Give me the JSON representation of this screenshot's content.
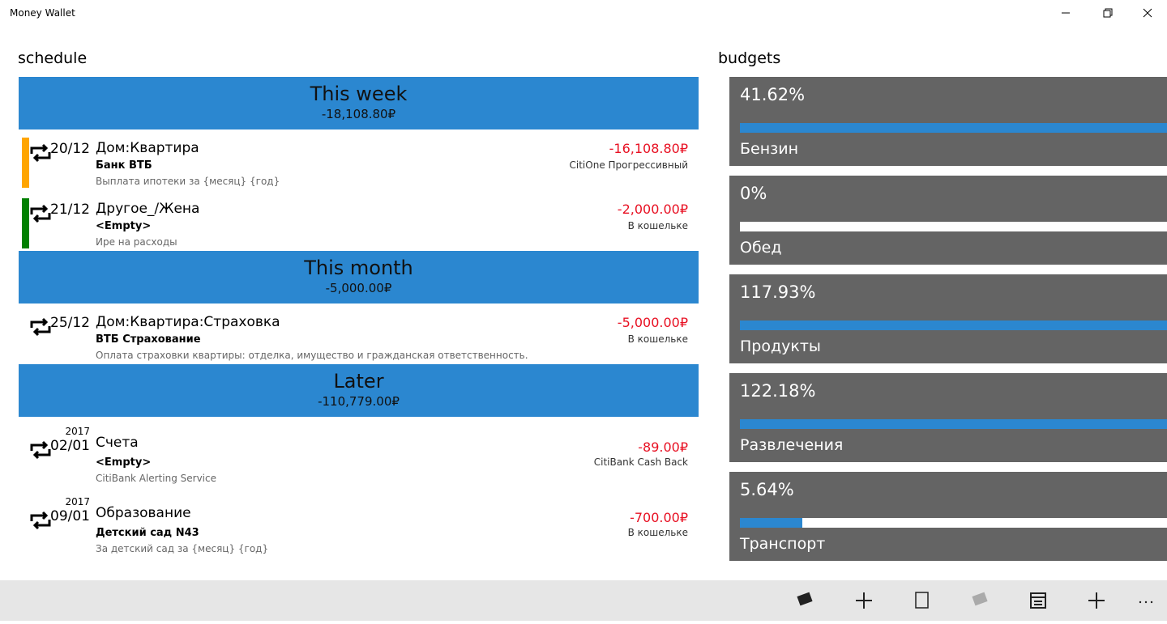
{
  "window": {
    "title": "Money Wallet"
  },
  "schedule": {
    "heading": "schedule",
    "groups": [
      {
        "title": "This week",
        "total": "-18,108.80₽",
        "items": [
          {
            "color": "#ffa500",
            "date": "20/12",
            "category": "Дом:Квартира",
            "payee": "Банк ВТБ",
            "memo": "Выплата ипотеки за {месяц} {год}",
            "amount": "-16,108.80₽",
            "account": "CitiOne Прогрессивный"
          },
          {
            "color": "#008000",
            "date": "21/12",
            "category": "Другое_/Жена",
            "payee": "<Empty>",
            "memo": "Ире на расходы",
            "amount": "-2,000.00₽",
            "account": "В кошельке"
          }
        ]
      },
      {
        "title": "This month",
        "total": "-5,000.00₽",
        "items": [
          {
            "date": "25/12",
            "category": "Дом:Квартира:Страховка",
            "payee": "ВТБ Страхование",
            "memo": "Оплата страховки квартиры: отделка, имущество и гражданская ответственность.",
            "amount": "-5,000.00₽",
            "account": "В кошельке"
          }
        ]
      },
      {
        "title": "Later",
        "total": "-110,779.00₽",
        "items": [
          {
            "year": "2017",
            "date": "02/01",
            "category": "Счета",
            "payee": "<Empty>",
            "memo": "CitiBank Alerting Service",
            "amount": "-89.00₽",
            "account": "CitiBank Cash Back"
          },
          {
            "year": "2017",
            "date": "09/01",
            "category": "Образование",
            "payee": "Детский сад N43",
            "memo": "За детский сад за {месяц} {год}",
            "amount": "-700.00₽",
            "account": "В кошельке"
          }
        ]
      }
    ]
  },
  "budgets": {
    "heading": "budgets",
    "items": [
      {
        "percent": "41.62%",
        "name": "Бензин"
      },
      {
        "percent": "0%",
        "name": "Обед"
      },
      {
        "percent": "117.93%",
        "name": "Продукты"
      },
      {
        "percent": "122.18%",
        "name": "Развлечения"
      },
      {
        "percent": "5.64%",
        "name": "Транспорт"
      }
    ]
  }
}
